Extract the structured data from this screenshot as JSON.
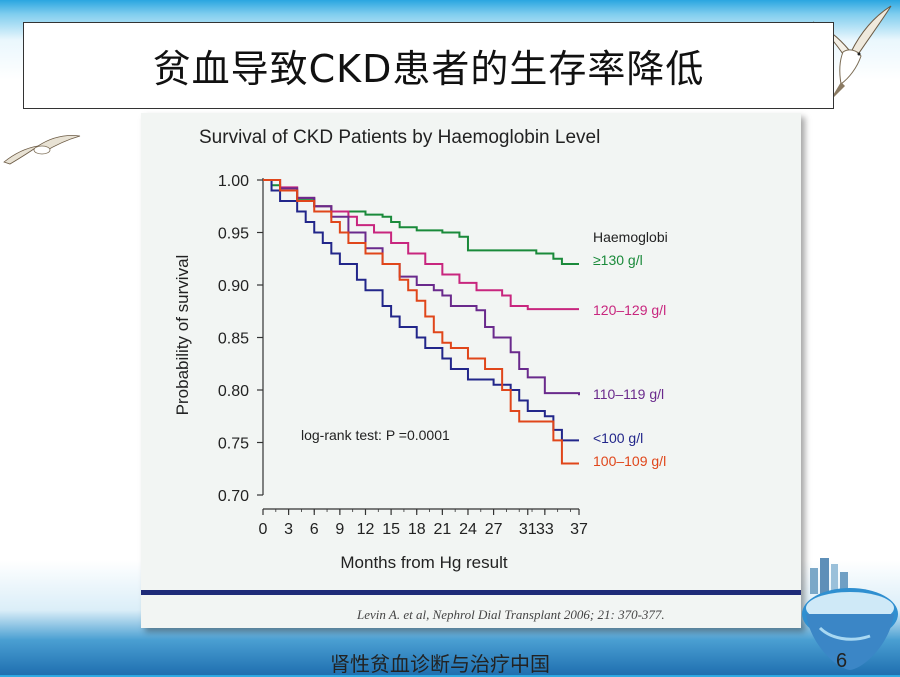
{
  "slide": {
    "title": "贫血导致CKD患者的生存率降低",
    "footer": "肾性贫血诊断与治疗中国",
    "page_number": "6"
  },
  "citation": "Levin A. et al, Nephrol Dial Transplant 2006; 21: 370-377.",
  "colors": {
    "ge130": "#1a8a3a",
    "r120_129": "#c8267e",
    "r110_119": "#6a2a8c",
    "lt100": "#22268a",
    "r100_109": "#e0461a",
    "footer_bar": "#1f2b78"
  },
  "chart_data": {
    "type": "line",
    "title": "Survival of CKD Patients by Haemoglobin Level",
    "xlabel": "Months from Hg result",
    "ylabel": "Probability of survival",
    "xlim": [
      0,
      37
    ],
    "ylim": [
      0.7,
      1.0
    ],
    "x_ticks": [
      0,
      3,
      6,
      9,
      12,
      15,
      18,
      21,
      24,
      27,
      31,
      33,
      37
    ],
    "x_tick_labels": [
      "0",
      "3",
      "6",
      "9",
      "12",
      "15",
      "18",
      "21",
      "24",
      "27",
      "31",
      "33",
      "37"
    ],
    "y_ticks": [
      0.7,
      0.75,
      0.8,
      0.85,
      0.9,
      0.95,
      1.0
    ],
    "y_tick_labels": [
      "0.70",
      "0.75",
      "0.80",
      "0.85",
      "0.90",
      "0.95",
      "1.00"
    ],
    "legend_title": "Haemoglobi",
    "annotation": "log-rank test: P =0.0001",
    "series": [
      {
        "name": "≥130 g/l",
        "color_key": "ge130",
        "points": [
          [
            0,
            1.0
          ],
          [
            1,
            0.995
          ],
          [
            2,
            0.99
          ],
          [
            4,
            0.982
          ],
          [
            6,
            0.975
          ],
          [
            8,
            0.97
          ],
          [
            10,
            0.97
          ],
          [
            12,
            0.967
          ],
          [
            14,
            0.965
          ],
          [
            15,
            0.96
          ],
          [
            16,
            0.955
          ],
          [
            18,
            0.952
          ],
          [
            21,
            0.95
          ],
          [
            23,
            0.946
          ],
          [
            24,
            0.933
          ],
          [
            27,
            0.933
          ],
          [
            30,
            0.933
          ],
          [
            32,
            0.93
          ],
          [
            34,
            0.925
          ],
          [
            35,
            0.92
          ],
          [
            37,
            0.92
          ]
        ]
      },
      {
        "name": "120–129 g/l",
        "color_key": "r120_129",
        "points": [
          [
            0,
            1.0
          ],
          [
            2,
            0.993
          ],
          [
            4,
            0.983
          ],
          [
            6,
            0.975
          ],
          [
            8,
            0.97
          ],
          [
            10,
            0.965
          ],
          [
            11,
            0.957
          ],
          [
            13,
            0.95
          ],
          [
            15,
            0.94
          ],
          [
            17,
            0.93
          ],
          [
            19,
            0.92
          ],
          [
            21,
            0.91
          ],
          [
            23,
            0.902
          ],
          [
            25,
            0.895
          ],
          [
            28,
            0.89
          ],
          [
            29,
            0.88
          ],
          [
            31,
            0.877
          ],
          [
            33,
            0.877
          ],
          [
            37,
            0.877
          ]
        ]
      },
      {
        "name": "110–119 g/l",
        "color_key": "r110_119",
        "points": [
          [
            0,
            1.0
          ],
          [
            2,
            0.992
          ],
          [
            4,
            0.983
          ],
          [
            6,
            0.975
          ],
          [
            8,
            0.965
          ],
          [
            10,
            0.95
          ],
          [
            12,
            0.935
          ],
          [
            14,
            0.92
          ],
          [
            16,
            0.908
          ],
          [
            18,
            0.9
          ],
          [
            20,
            0.895
          ],
          [
            21,
            0.89
          ],
          [
            22,
            0.88
          ],
          [
            25,
            0.876
          ],
          [
            26,
            0.86
          ],
          [
            27,
            0.85
          ],
          [
            29,
            0.836
          ],
          [
            30,
            0.82
          ],
          [
            31,
            0.812
          ],
          [
            33,
            0.797
          ],
          [
            37,
            0.795
          ]
        ]
      },
      {
        "name": "<100 g/l",
        "color_key": "lt100",
        "points": [
          [
            0,
            1.0
          ],
          [
            1,
            0.99
          ],
          [
            2,
            0.98
          ],
          [
            4,
            0.97
          ],
          [
            5,
            0.96
          ],
          [
            6,
            0.95
          ],
          [
            7,
            0.94
          ],
          [
            8,
            0.93
          ],
          [
            9,
            0.92
          ],
          [
            11,
            0.905
          ],
          [
            12,
            0.895
          ],
          [
            14,
            0.88
          ],
          [
            15,
            0.87
          ],
          [
            16,
            0.86
          ],
          [
            18,
            0.85
          ],
          [
            19,
            0.84
          ],
          [
            21,
            0.83
          ],
          [
            22,
            0.82
          ],
          [
            24,
            0.81
          ],
          [
            27,
            0.805
          ],
          [
            29,
            0.8
          ],
          [
            30,
            0.79
          ],
          [
            31,
            0.78
          ],
          [
            33,
            0.775
          ],
          [
            34,
            0.762
          ],
          [
            35,
            0.752
          ],
          [
            37,
            0.752
          ]
        ]
      },
      {
        "name": "100–109 g/l",
        "color_key": "r100_109",
        "points": [
          [
            0,
            1.0
          ],
          [
            2,
            0.99
          ],
          [
            4,
            0.98
          ],
          [
            6,
            0.97
          ],
          [
            8,
            0.96
          ],
          [
            9,
            0.95
          ],
          [
            10,
            0.94
          ],
          [
            12,
            0.93
          ],
          [
            14,
            0.92
          ],
          [
            16,
            0.905
          ],
          [
            17,
            0.895
          ],
          [
            18,
            0.885
          ],
          [
            19,
            0.87
          ],
          [
            20,
            0.855
          ],
          [
            21,
            0.845
          ],
          [
            22,
            0.84
          ],
          [
            24,
            0.83
          ],
          [
            26,
            0.82
          ],
          [
            28,
            0.8
          ],
          [
            29,
            0.78
          ],
          [
            30,
            0.77
          ],
          [
            33,
            0.77
          ],
          [
            34,
            0.752
          ],
          [
            35,
            0.73
          ],
          [
            37,
            0.73
          ]
        ]
      }
    ]
  }
}
